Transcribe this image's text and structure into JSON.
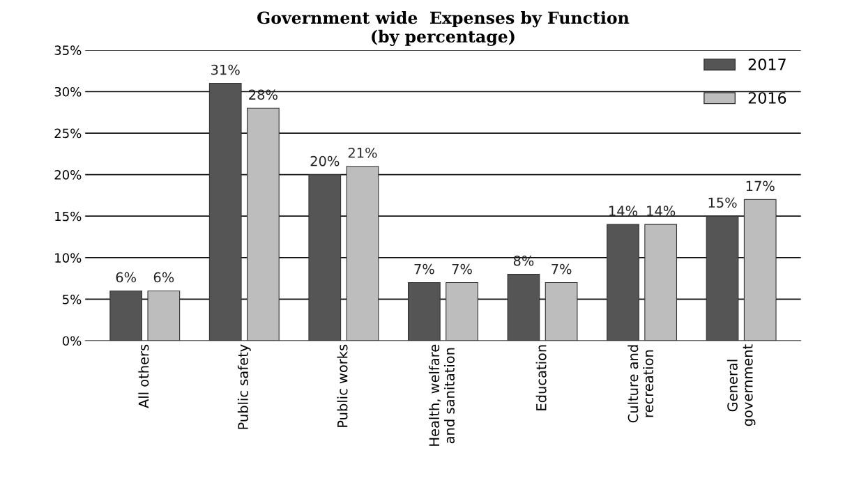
{
  "chart_data": {
    "type": "bar",
    "title": "Government wide  Expenses by Function\n(by percentage)",
    "categories": [
      "All others",
      "Public safety",
      "Public works",
      "Health, welfare\nand sanitation",
      "Education",
      "Culture and\nrecreation",
      "General\ngovernment"
    ],
    "series": [
      {
        "name": "2017",
        "color": "#555555",
        "values": [
          6,
          31,
          20,
          7,
          8,
          14,
          15
        ],
        "value_labels": [
          "6%",
          "31%",
          "20%",
          "7%",
          "8%",
          "14%",
          "15%"
        ]
      },
      {
        "name": "2016",
        "color": "#bdbdbd",
        "values": [
          6,
          28,
          21,
          7,
          7,
          14,
          17
        ],
        "value_labels": [
          "6%",
          "28%",
          "21%",
          "7%",
          "7%",
          "14%",
          "17%"
        ]
      }
    ],
    "ylim": [
      0,
      35
    ],
    "yticks": [
      {
        "value": 0,
        "label": "0%"
      },
      {
        "value": 5,
        "label": "5%"
      },
      {
        "value": 10,
        "label": "10%"
      },
      {
        "value": 15,
        "label": "15%"
      },
      {
        "value": 20,
        "label": "20%"
      },
      {
        "value": 25,
        "label": "25%"
      },
      {
        "value": 30,
        "label": "30%"
      },
      {
        "value": 35,
        "label": "35%"
      }
    ],
    "grid": "y",
    "legend": "top right"
  }
}
